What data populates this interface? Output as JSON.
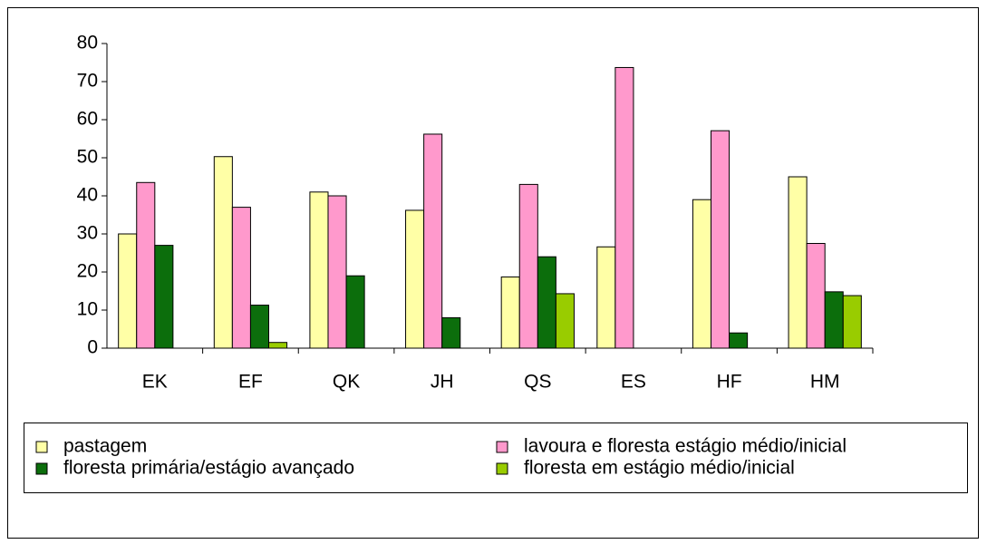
{
  "chart_data": {
    "type": "bar",
    "categories": [
      "EK",
      "EF",
      "QK",
      "JH",
      "QS",
      "ES",
      "HF",
      "HM"
    ],
    "series": [
      {
        "name": "pastagem",
        "color": "#ffffa6",
        "values": [
          30,
          50.3,
          41,
          36.2,
          18.7,
          26.6,
          39,
          45
        ]
      },
      {
        "name": "lavoura e floresta estágio médio/inicial",
        "color": "#ff99cc",
        "values": [
          43.5,
          37,
          40,
          56.2,
          43,
          73.7,
          57.1,
          27.5
        ]
      },
      {
        "name": "floresta primária/estágio avançado",
        "color": "#0c6e0c",
        "values": [
          27,
          11.3,
          19,
          8,
          24,
          0,
          4,
          14.8
        ]
      },
      {
        "name": "floresta em estágio médio/inicial",
        "color": "#99cc00",
        "values": [
          0,
          1.5,
          0,
          0,
          14.3,
          0,
          0,
          13.8
        ]
      }
    ],
    "ylim": [
      0,
      80
    ],
    "yticks": [
      0,
      10,
      20,
      30,
      40,
      50,
      60,
      70,
      80
    ],
    "grid": false,
    "legend": "bottom"
  }
}
